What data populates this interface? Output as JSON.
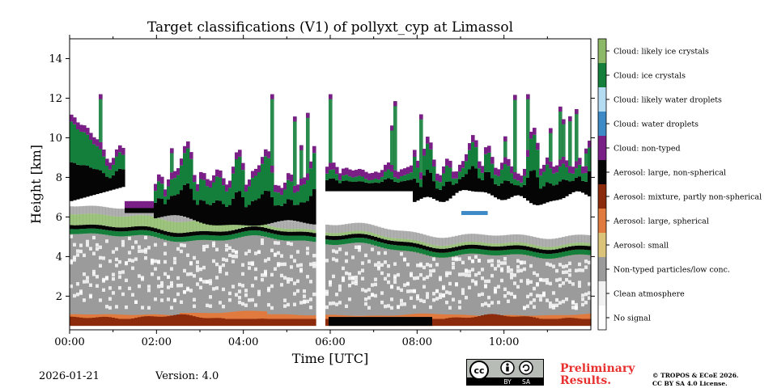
{
  "chart_data": {
    "type": "heatmap",
    "title": "Target classifications (V1) of pollyxt_cyp at Limassol",
    "xlabel": "Time [UTC]",
    "ylabel": "Height [km]",
    "xlim": [
      0,
      12
    ],
    "ylim": [
      0.3,
      15
    ],
    "x_ticks": [
      0,
      2,
      4,
      6,
      8,
      10
    ],
    "x_tick_labels": [
      "00:00",
      "02:00",
      "04:00",
      "06:00",
      "08:00",
      "10:00"
    ],
    "y_ticks": [
      2,
      4,
      6,
      8,
      10,
      12,
      14
    ],
    "y_tick_labels": [
      "2",
      "4",
      "6",
      "8",
      "10",
      "12",
      "14"
    ],
    "data_gap_hours": [
      5.72,
      5.88
    ],
    "classes": [
      {
        "label": "No signal",
        "color": "#ffffff"
      },
      {
        "label": "Clean atmosphere",
        "color": "#f2f2f2"
      },
      {
        "label": "Non-typed particles/low conc.",
        "color": "#9b9b9b"
      },
      {
        "label": "Aerosol: small",
        "color": "#dcc37a"
      },
      {
        "label": "Aerosol: large, spherical",
        "color": "#e07a3e"
      },
      {
        "label": "Aerosol: mixture, partly non-spherical",
        "color": "#8b2b0b"
      },
      {
        "label": "Aerosol: large, non-spherical",
        "color": "#050505"
      },
      {
        "label": "Cloud: non-typed",
        "color": "#7a1f85"
      },
      {
        "label": "Cloud: water droplets",
        "color": "#3d8ac6"
      },
      {
        "label": "Cloud: likely water droplets",
        "color": "#b4dcf2"
      },
      {
        "label": "Cloud: ice crystals",
        "color": "#137f3a"
      },
      {
        "label": "Cloud: likely ice crystals",
        "color": "#8cb868"
      }
    ],
    "layers": [
      {
        "class": "Aerosol: mixture, partly non-spherical",
        "bottom_km": 0.5,
        "top_km": 1.0
      },
      {
        "class": "Aerosol: large, spherical",
        "bottom_km": 0.5,
        "top_km": 1.2
      },
      {
        "class": "Non-typed particles/low conc.",
        "bottom_km": 1.0,
        "top_km": 5.3
      },
      {
        "class": "Cloud: ice crystals",
        "bottom_km": 5.3,
        "top_km": 10.0
      },
      {
        "class": "Aerosol: large, non-spherical",
        "bottom_km": 5.5,
        "top_km": 9.5
      },
      {
        "class": "Cloud: non-typed",
        "bottom_km": 6.0,
        "top_km": 12.0
      }
    ]
  },
  "footer": {
    "date": "2026-01-21",
    "version": "Version: 4.0",
    "preliminary_line1": "Preliminary",
    "preliminary_line2": "Results.",
    "copyright_line1": "© TROPOS & ECoE 2026.",
    "copyright_line2": "CC BY SA 4.0 License.",
    "license_badge": {
      "cc": "cc",
      "by": "BY",
      "sa": "SA"
    }
  }
}
